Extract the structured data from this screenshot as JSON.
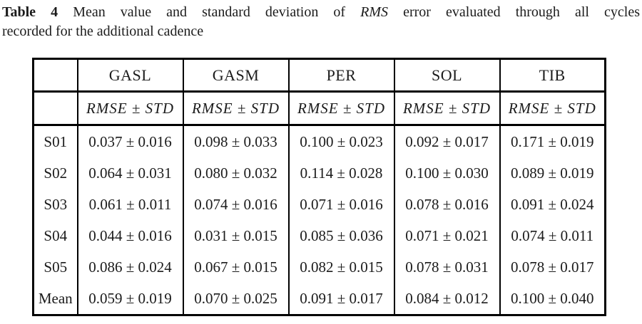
{
  "caption": {
    "label": "Table 4",
    "text_before_italic": " Mean value and standard deviation of ",
    "italic_term": "RMS",
    "text_after_italic": " error evaluated through all cycles",
    "line2": "recorded for the additional cadence"
  },
  "table": {
    "column_headers": [
      "GASL",
      "GASM",
      "PER",
      "SOL",
      "TIB"
    ],
    "subheaders": [
      "RMSE ± STD",
      "RMSE ± STD",
      "RMSE ± STD",
      "RMSE ± STD",
      "RMSE ± STD"
    ],
    "rows": [
      {
        "label": "S01",
        "values": [
          "0.037 ± 0.016",
          "0.098 ± 0.033",
          "0.100 ± 0.023",
          "0.092 ± 0.017",
          "0.171 ± 0.019"
        ]
      },
      {
        "label": "S02",
        "values": [
          "0.064 ± 0.031",
          "0.080 ± 0.032",
          "0.114 ± 0.028",
          "0.100 ± 0.030",
          "0.089 ± 0.019"
        ]
      },
      {
        "label": "S03",
        "values": [
          "0.061 ± 0.011",
          "0.074 ± 0.016",
          "0.071 ± 0.016",
          "0.078 ± 0.016",
          "0.091 ± 0.024"
        ]
      },
      {
        "label": "S04",
        "values": [
          "0.044 ± 0.016",
          "0.031 ± 0.015",
          "0.085 ± 0.036",
          "0.071 ± 0.021",
          "0.074 ± 0.011"
        ]
      },
      {
        "label": "S05",
        "values": [
          "0.086 ± 0.024",
          "0.067 ± 0.015",
          "0.082 ± 0.015",
          "0.078 ± 0.031",
          "0.078 ± 0.017"
        ]
      },
      {
        "label": "Mean",
        "values": [
          "0.059 ± 0.019",
          "0.070 ± 0.025",
          "0.091 ± 0.017",
          "0.084 ± 0.012",
          "0.100 ± 0.040"
        ]
      }
    ]
  },
  "colors": {
    "text": "#1b1b1b",
    "border": "#000000",
    "background": "#ffffff"
  }
}
